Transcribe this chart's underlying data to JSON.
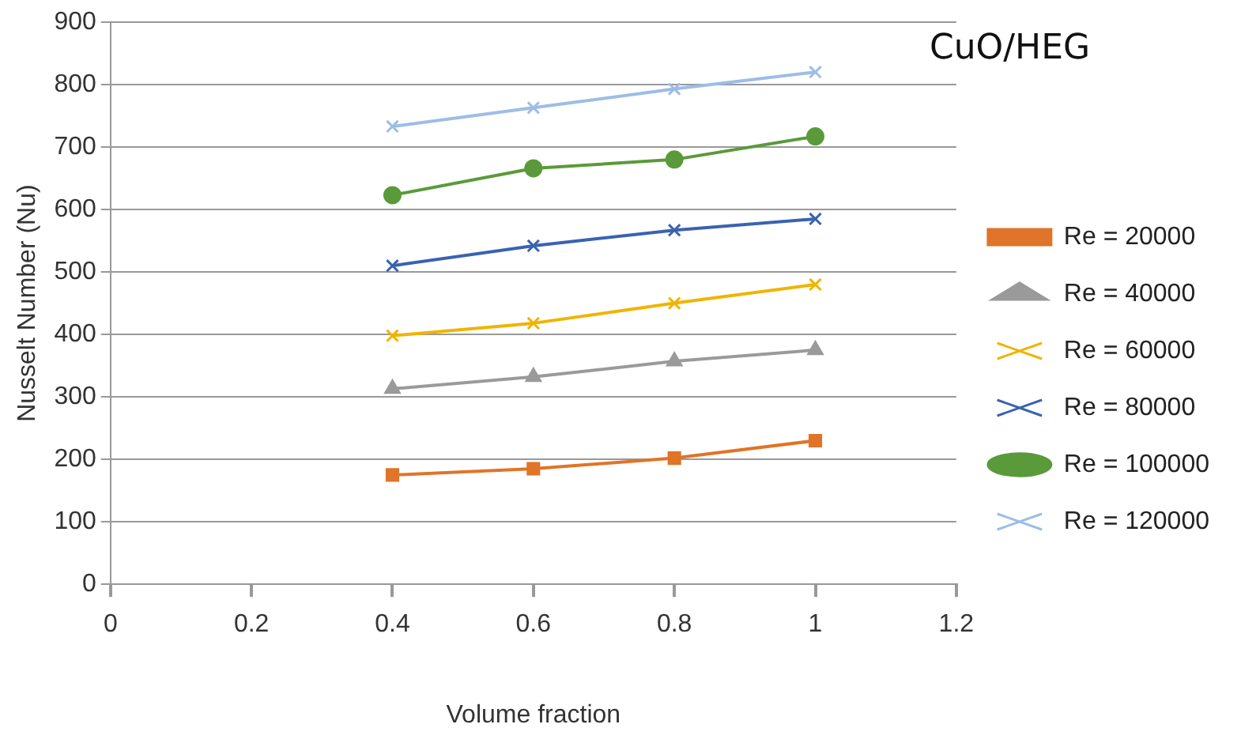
{
  "chart_data": {
    "type": "line",
    "title": "CuO/HEG",
    "xlabel": "Volume fraction",
    "ylabel": "Nusselt Number (Nu)",
    "x": [
      0.4,
      0.6,
      0.8,
      1
    ],
    "xlim": [
      0,
      1.2
    ],
    "xticks": [
      0,
      0.2,
      0.4,
      0.6,
      0.8,
      1,
      1.2
    ],
    "ylim": [
      0,
      900
    ],
    "yticks": [
      0,
      100,
      200,
      300,
      400,
      500,
      600,
      700,
      800,
      900
    ],
    "grid": "y",
    "legend": "right",
    "series": [
      {
        "name": "Re = 20000",
        "color": "#e07428",
        "marker": "square",
        "values": [
          175,
          185,
          202,
          230
        ]
      },
      {
        "name": "Re = 40000",
        "color": "#9a9a9a",
        "marker": "triangle",
        "values": [
          313,
          332,
          357,
          375
        ]
      },
      {
        "name": "Re = 60000",
        "color": "#f0b400",
        "marker": "cross",
        "values": [
          398,
          418,
          450,
          480
        ]
      },
      {
        "name": "Re = 80000",
        "color": "#3a62b0",
        "marker": "cross",
        "values": [
          510,
          542,
          567,
          585
        ]
      },
      {
        "name": "Re = 100000",
        "color": "#5a9a3a",
        "marker": "circle",
        "values": [
          623,
          666,
          680,
          717
        ]
      },
      {
        "name": "Re = 120000",
        "color": "#9dbde6",
        "marker": "cross",
        "values": [
          733,
          763,
          793,
          820
        ]
      }
    ]
  }
}
